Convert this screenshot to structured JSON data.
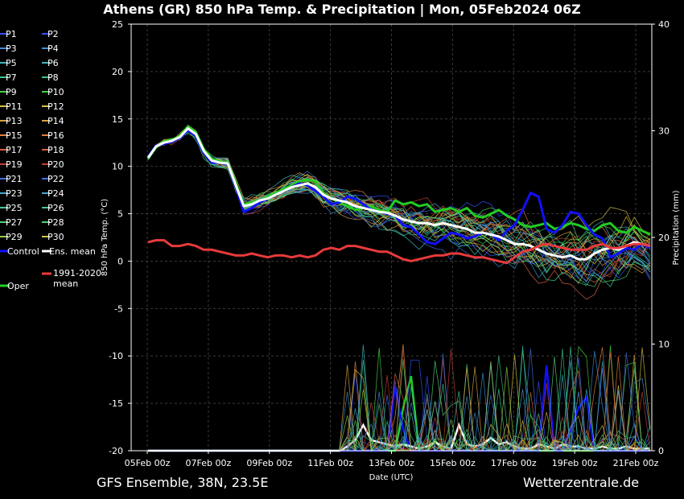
{
  "title": "Athens  (GR)  850 hPa Temp. & Precipitation | Mon, 05Feb2024 06Z",
  "footer_left": "GFS Ensemble, 38N, 23.5E",
  "footer_right": "Wetterzentrale.de",
  "colors": {
    "background": "#000000",
    "grid": "#444444",
    "control": "#1010ff",
    "ens_mean": "#ffffff",
    "oper": "#22cc22",
    "climate_mean": "#e83a3a"
  },
  "legend": {
    "members": [
      {
        "label": "P1",
        "color": "#3050ff"
      },
      {
        "label": "P2",
        "color": "#3050ff"
      },
      {
        "label": "P3",
        "color": "#3a8fd8"
      },
      {
        "label": "P4",
        "color": "#3a8fd8"
      },
      {
        "label": "P5",
        "color": "#38b8b8"
      },
      {
        "label": "P6",
        "color": "#38b8b8"
      },
      {
        "label": "P7",
        "color": "#38c888"
      },
      {
        "label": "P8",
        "color": "#38c888"
      },
      {
        "label": "P9",
        "color": "#44d044"
      },
      {
        "label": "P10",
        "color": "#44d044"
      },
      {
        "label": "P11",
        "color": "#d8c040"
      },
      {
        "label": "P12",
        "color": "#d8c040"
      },
      {
        "label": "P13",
        "color": "#d8a040"
      },
      {
        "label": "P14",
        "color": "#d8a040"
      },
      {
        "label": "P15",
        "color": "#e08040"
      },
      {
        "label": "P16",
        "color": "#e08040"
      },
      {
        "label": "P17",
        "color": "#d86040"
      },
      {
        "label": "P18",
        "color": "#d86040"
      },
      {
        "label": "P19",
        "color": "#c04030"
      },
      {
        "label": "P20",
        "color": "#c04030"
      },
      {
        "label": "P21",
        "color": "#4070e0"
      },
      {
        "label": "P22",
        "color": "#4070e0"
      },
      {
        "label": "P23",
        "color": "#40a8d0"
      },
      {
        "label": "P24",
        "color": "#40a8d0"
      },
      {
        "label": "P25",
        "color": "#40c8a0"
      },
      {
        "label": "P26",
        "color": "#40c8a0"
      },
      {
        "label": "P27",
        "color": "#50d070"
      },
      {
        "label": "P28",
        "color": "#50d070"
      },
      {
        "label": "P29",
        "color": "#90d040"
      },
      {
        "label": "P30",
        "color": "#d0c040"
      }
    ],
    "control": "Control",
    "ens_mean": "Ens. mean",
    "oper": "Oper",
    "climate_line1": "1991-2020",
    "climate_line2": "mean"
  },
  "chart_data": {
    "type": "line",
    "xlabel": "Date (UTC)",
    "ylabel": "850 hPa Temp. (°C)",
    "ylabel_right": "Precipitation (mm)",
    "x_ticks": [
      "05Feb 00z",
      "07Feb 00z",
      "09Feb 00z",
      "11Feb 00z",
      "13Feb 00z",
      "15Feb 00z",
      "17Feb 00z",
      "19Feb 00z",
      "21Feb 00z"
    ],
    "y_ticks": [
      "25",
      "20",
      "15",
      "10",
      "5",
      "0",
      "-5",
      "-10",
      "-15",
      "-20"
    ],
    "y2_ticks": [
      "40",
      "30",
      "20",
      "10",
      "0"
    ],
    "ylim": [
      -20,
      25
    ],
    "y2lim": [
      0,
      40
    ],
    "x_start": "05Feb 00z",
    "x_step_hours": 6,
    "grid": true,
    "legend_position": "left",
    "series": [
      {
        "name": "Oper",
        "values": [
          10.8,
          12.0,
          12.6,
          12.8,
          13.2,
          14.2,
          13.6,
          11.8,
          10.8,
          10.5,
          10.4,
          8.2,
          6.0,
          6.2,
          6.4,
          6.8,
          7.2,
          7.6,
          8.0,
          8.4,
          8.6,
          8.4,
          7.2,
          6.6,
          6.2,
          5.8,
          5.4,
          5.6,
          5.8,
          5.4,
          5.2,
          6.4,
          6.0,
          6.2,
          5.8,
          6.0,
          5.2,
          5.4,
          5.6,
          5.2,
          5.6,
          4.8,
          4.6,
          5.0,
          5.4,
          4.8,
          4.4,
          3.8,
          3.6,
          3.8,
          4.0,
          3.4,
          3.6,
          4.0,
          3.8,
          3.4,
          3.2,
          3.8,
          4.0,
          3.2,
          3.0,
          3.6,
          3.2,
          2.8
        ]
      },
      {
        "name": "Control",
        "values": [
          11.0,
          12.2,
          12.4,
          12.6,
          13.0,
          13.8,
          13.2,
          11.4,
          10.4,
          10.4,
          10.2,
          7.8,
          5.2,
          5.6,
          6.2,
          6.6,
          7.0,
          7.4,
          7.8,
          8.2,
          8.0,
          7.4,
          6.8,
          6.0,
          6.2,
          6.8,
          6.6,
          6.0,
          5.4,
          5.2,
          5.0,
          4.8,
          3.8,
          3.6,
          2.8,
          2.0,
          1.8,
          2.4,
          3.0,
          2.8,
          2.4,
          2.6,
          3.0,
          2.8,
          2.2,
          3.2,
          3.8,
          5.4,
          7.2,
          6.8,
          3.4,
          3.0,
          3.8,
          5.2,
          5.0,
          3.8,
          2.8,
          2.4,
          0.4,
          0.8,
          1.4,
          1.2,
          1.8,
          1.4
        ]
      },
      {
        "name": "Ens. mean",
        "values": [
          10.9,
          12.1,
          12.5,
          12.7,
          13.1,
          14.0,
          13.4,
          11.6,
          10.6,
          10.4,
          10.3,
          8.0,
          5.8,
          6.0,
          6.4,
          6.6,
          7.0,
          7.4,
          7.8,
          8.0,
          8.2,
          7.8,
          7.0,
          6.6,
          6.4,
          6.2,
          5.8,
          5.6,
          5.4,
          5.2,
          5.1,
          4.8,
          4.4,
          4.2,
          4.0,
          4.0,
          3.8,
          4.0,
          3.8,
          3.6,
          3.4,
          3.0,
          3.0,
          2.8,
          2.6,
          2.2,
          1.8,
          1.8,
          1.6,
          1.2,
          0.8,
          0.6,
          0.4,
          0.6,
          0.2,
          0.2,
          0.8,
          1.2,
          1.4,
          1.2,
          1.6,
          2.0,
          1.8,
          1.6
        ]
      },
      {
        "name": "1991-2020 mean",
        "values": [
          2.0,
          2.2,
          2.2,
          1.6,
          1.6,
          1.8,
          1.6,
          1.2,
          1.2,
          1.0,
          0.8,
          0.6,
          0.6,
          0.8,
          0.6,
          0.4,
          0.6,
          0.6,
          0.4,
          0.6,
          0.4,
          0.6,
          1.2,
          1.4,
          1.2,
          1.6,
          1.6,
          1.4,
          1.2,
          1.0,
          1.0,
          0.6,
          0.2,
          0.0,
          0.2,
          0.4,
          0.6,
          0.6,
          0.8,
          0.8,
          0.6,
          0.4,
          0.4,
          0.2,
          0.0,
          -0.2,
          0.4,
          1.0,
          1.2,
          1.6,
          1.8,
          1.6,
          1.4,
          1.2,
          1.2,
          1.2,
          1.6,
          1.8,
          1.4,
          1.4,
          1.6,
          1.8,
          1.8,
          1.6
        ]
      }
    ],
    "precipitation": {
      "axis": "right",
      "unit": "mm",
      "oper": [
        0,
        0,
        0,
        0,
        0,
        0,
        0,
        0,
        0,
        0,
        0,
        0,
        0,
        0,
        0,
        0,
        0,
        0,
        0,
        0,
        0,
        0,
        0,
        0,
        0,
        0,
        0,
        0,
        0,
        0,
        0,
        0,
        4,
        7,
        0,
        0,
        1,
        0,
        0,
        0,
        0,
        0,
        0,
        0,
        0,
        0,
        0,
        0,
        0,
        0,
        0,
        0,
        0,
        0,
        0,
        0,
        0,
        0,
        0,
        0,
        0,
        0,
        0,
        0
      ],
      "control": [
        0,
        0,
        0,
        0,
        0,
        0,
        0,
        0,
        0,
        0,
        0,
        0,
        0,
        0,
        0,
        0,
        0,
        0,
        0,
        0,
        0,
        0,
        0,
        0,
        0,
        0,
        0,
        0,
        0,
        0,
        0,
        6,
        2,
        0,
        0,
        0,
        0,
        0,
        0,
        0,
        0,
        0,
        0,
        0,
        0,
        0,
        0,
        0,
        0,
        0,
        8,
        0,
        0,
        2,
        4,
        5,
        0,
        0,
        0,
        0,
        0,
        0,
        0,
        0
      ],
      "ens_mean": [
        0,
        0,
        0,
        0,
        0,
        0,
        0,
        0,
        0,
        0,
        0,
        0,
        0,
        0,
        0,
        0,
        0,
        0,
        0,
        0,
        0,
        0,
        0,
        0,
        0,
        0.4,
        1,
        2.4,
        1,
        0.8,
        0.6,
        0.4,
        0.6,
        0.4,
        0.2,
        0.4,
        0.8,
        0.4,
        0.2,
        2.4,
        0.6,
        0.4,
        0.6,
        1.2,
        0.6,
        0.8,
        0.4,
        0.2,
        0.2,
        0.6,
        0.4,
        0.2,
        0.6,
        0.4,
        0.4,
        0.2,
        0.2,
        0.4,
        0.2,
        0.2,
        0.4,
        0.2,
        0.2,
        0.2
      ]
    }
  }
}
